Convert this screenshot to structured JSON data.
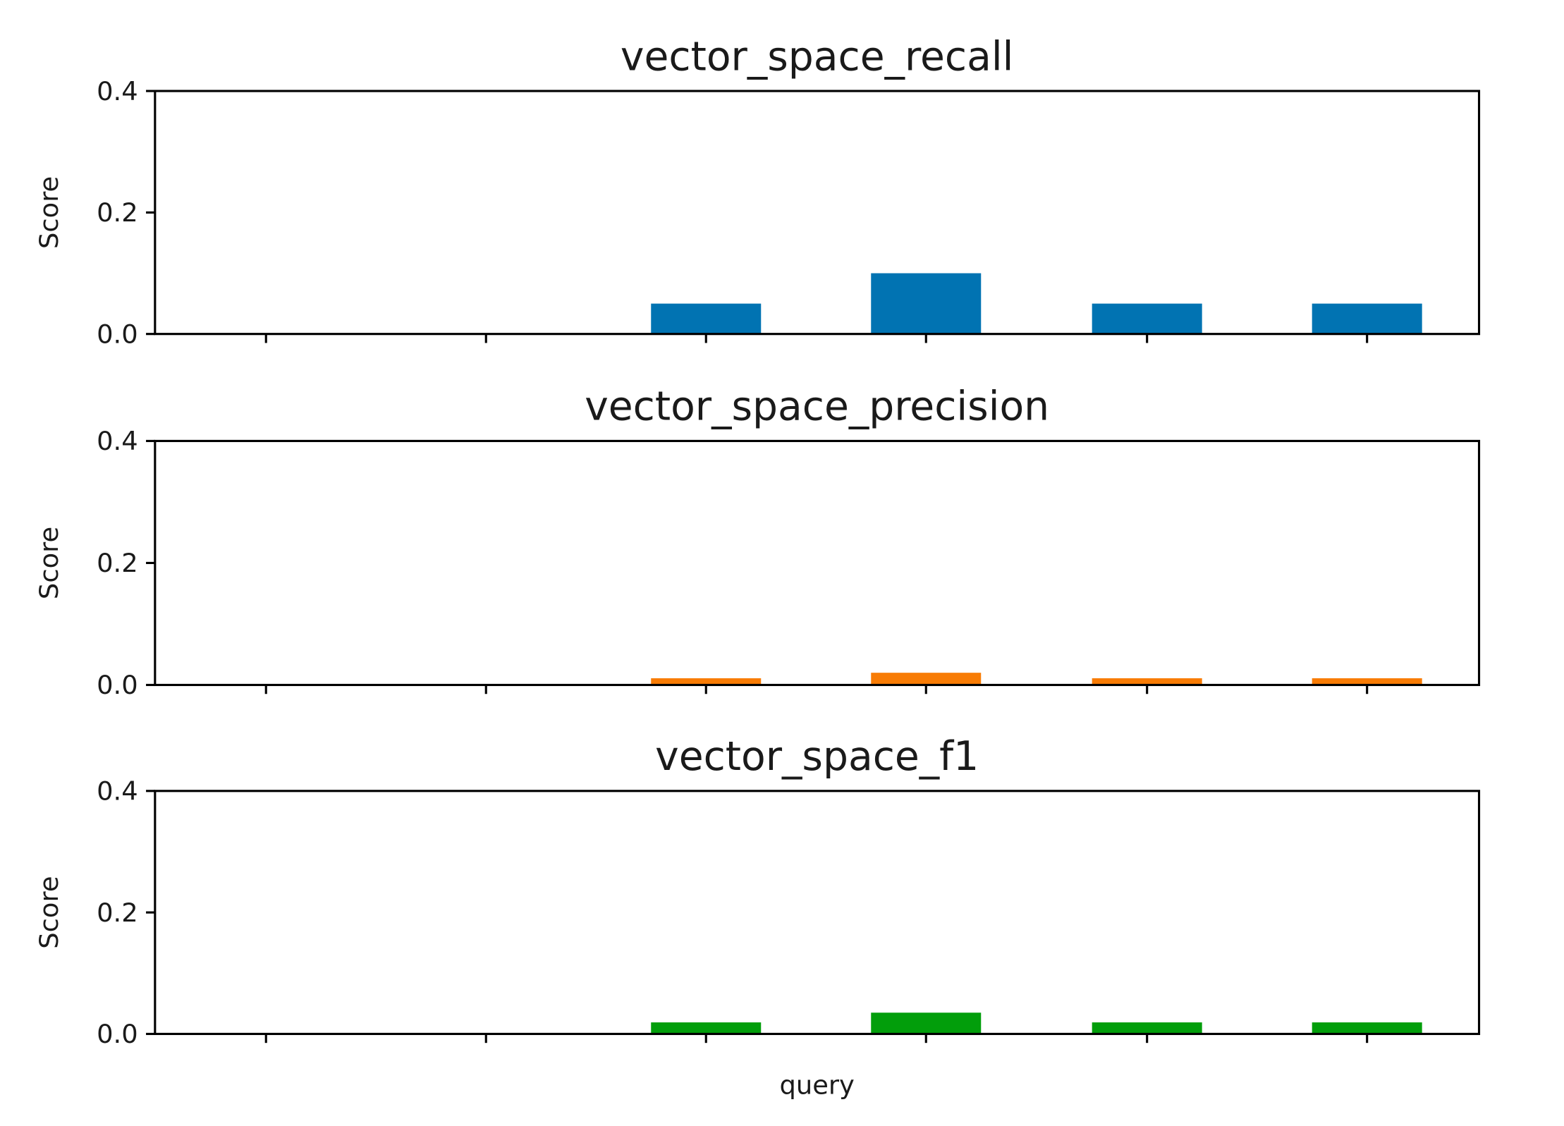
{
  "chart_data": [
    {
      "type": "bar",
      "title": "vector_space_recall",
      "xlabel": "",
      "ylabel": "Score",
      "ylim": [
        0,
        0.4
      ],
      "yticks": [
        "0.0",
        "0.2",
        "0.4"
      ],
      "x_tick_count": 6,
      "values": [
        0,
        0,
        0.05,
        0.1,
        0.05,
        0.05
      ],
      "color": "#0173b2",
      "grid": false
    },
    {
      "type": "bar",
      "title": "vector_space_precision",
      "xlabel": "",
      "ylabel": "Score",
      "ylim": [
        0,
        0.4
      ],
      "yticks": [
        "0.0",
        "0.2",
        "0.4"
      ],
      "x_tick_count": 6,
      "values": [
        0,
        0,
        0.011,
        0.02,
        0.011,
        0.011
      ],
      "color": "#f87c05",
      "grid": false
    },
    {
      "type": "bar",
      "title": "vector_space_f1",
      "xlabel": "query",
      "ylabel": "Score",
      "ylim": [
        0,
        0.4
      ],
      "yticks": [
        "0.0",
        "0.2",
        "0.4"
      ],
      "x_tick_count": 6,
      "values": [
        0,
        0,
        0.019,
        0.035,
        0.019,
        0.019
      ],
      "color": "#029e0b",
      "grid": false
    }
  ]
}
